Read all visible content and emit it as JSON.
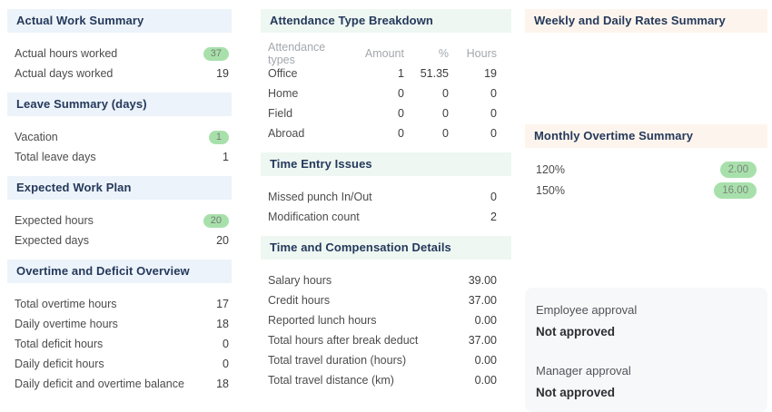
{
  "colors": {
    "left_header_bg": "#ecf3fa",
    "middle_header_bg": "#eef7f2",
    "right_header_bg": "#fdf5ed",
    "header_text": "#25395b",
    "badge_bg": "#a8e0ab",
    "approval_card_bg": "#f7f8f9"
  },
  "left_column": {
    "actual_work": {
      "title": "Actual Work Summary",
      "rows": [
        {
          "label": "Actual hours worked",
          "value": "37"
        },
        {
          "label": "Actual days worked",
          "value": "19"
        }
      ]
    },
    "leave_summary": {
      "title": "Leave Summary (days)",
      "rows": [
        {
          "label": "Vacation",
          "value": "1"
        },
        {
          "label": "Total leave days",
          "value": "1"
        }
      ]
    },
    "expected_plan": {
      "title": "Expected Work Plan",
      "rows": [
        {
          "label": "Expected hours",
          "value": "20"
        },
        {
          "label": "Expected days",
          "value": "20"
        }
      ]
    },
    "overtime_deficit": {
      "title": "Overtime and Deficit Overview",
      "rows": [
        {
          "label": "Total overtime hours",
          "value": "17"
        },
        {
          "label": "Daily overtime hours",
          "value": "18"
        },
        {
          "label": "Total deficit hours",
          "value": "0"
        },
        {
          "label": "Daily deficit hours",
          "value": "0"
        },
        {
          "label": "Daily deficit and overtime balance",
          "value": "18"
        }
      ]
    }
  },
  "middle_column": {
    "attendance": {
      "title": "Attendance Type Breakdown",
      "table": {
        "col_type": "Attendance types",
        "col_amount": "Amount",
        "col_pct": "%",
        "col_hours": "Hours",
        "rows": [
          {
            "type": "Office",
            "amount": "1",
            "pct": "51.35",
            "hours": "19"
          },
          {
            "type": "Home",
            "amount": "0",
            "pct": "0",
            "hours": "0"
          },
          {
            "type": "Field",
            "amount": "0",
            "pct": "0",
            "hours": "0"
          },
          {
            "type": "Abroad",
            "amount": "0",
            "pct": "0",
            "hours": "0"
          }
        ]
      }
    },
    "time_entry": {
      "title": "Time Entry Issues",
      "rows": [
        {
          "label": "Missed punch In/Out",
          "value": "0"
        },
        {
          "label": "Modification count",
          "value": "2"
        }
      ]
    },
    "compensation": {
      "title": "Time and Compensation Details",
      "rows": [
        {
          "label": "Salary hours",
          "value": "39.00"
        },
        {
          "label": "Credit hours",
          "value": "37.00"
        },
        {
          "label": "Reported lunch hours",
          "value": "0.00"
        },
        {
          "label": "Total hours after break deduct",
          "value": "37.00"
        },
        {
          "label": "Total travel duration (hours)",
          "value": "0.00"
        },
        {
          "label": "Total travel distance (km)",
          "value": "0.00"
        }
      ]
    }
  },
  "right_column": {
    "weekly_rates": {
      "title": "Weekly and Daily Rates Summary"
    },
    "monthly_overtime": {
      "title": "Monthly Overtime Summary",
      "rows": [
        {
          "label": "120%",
          "value": "2.00"
        },
        {
          "label": "150%",
          "value": "16.00"
        }
      ]
    },
    "approvals": [
      {
        "label": "Employee approval",
        "status": "Not approved"
      },
      {
        "label": "Manager approval",
        "status": "Not approved"
      }
    ]
  }
}
